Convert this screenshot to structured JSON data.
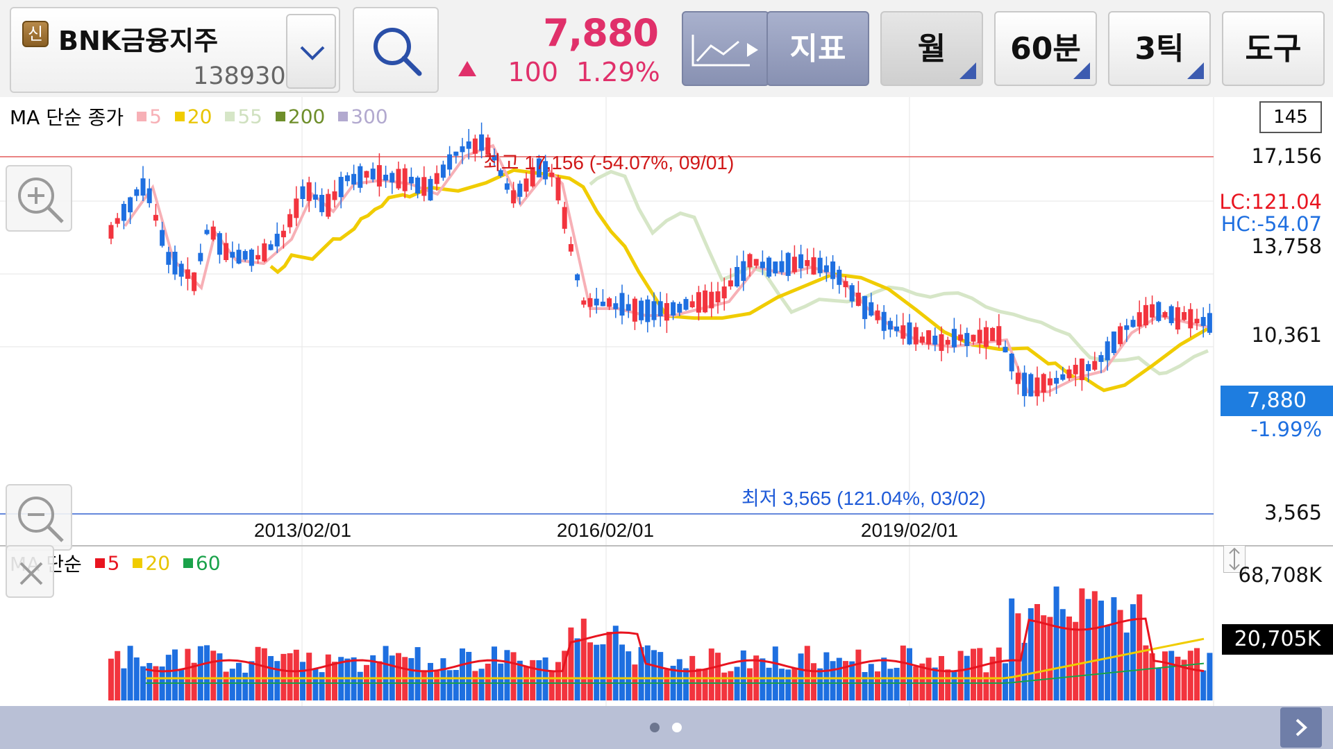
{
  "stock": {
    "badge": "신",
    "name": "BNK금융지주",
    "code": "138930",
    "price": "7,880",
    "change": "100",
    "change_pct": "1.29%"
  },
  "toolbar": {
    "indicator_label": "지표",
    "period_label": "월",
    "interval_label": "60분",
    "tick_label": "3틱",
    "tools_label": "도구"
  },
  "price_chart": {
    "ma_legend": {
      "title": "MA 단순 종가",
      "items": [
        {
          "label": "5",
          "color": "#f7b0b6"
        },
        {
          "label": "20",
          "color": "#f0cc00"
        },
        {
          "label": "55",
          "color": "#d6e6c7"
        },
        {
          "label": "200",
          "color": "#6e8e2a"
        },
        {
          "label": "300",
          "color": "#b2a9cf"
        }
      ]
    },
    "period_count": "145",
    "y_ticks": [
      "17,156",
      "13,758",
      "10,361",
      "3,565"
    ],
    "lc_label": "LC:121.04",
    "hc_label": "HC:-54.07",
    "current_price": "7,880",
    "current_pct": "-1.99%",
    "high_label": "최고 17,156 (-54.07%, 09/01)",
    "low_label": "최저 3,565 (121.04%, 03/02)",
    "x_labels": [
      "2013/02/01",
      "2016/02/01",
      "2019/02/01"
    ]
  },
  "volume_chart": {
    "ma_legend": {
      "title": "MA 단순",
      "items": [
        {
          "label": "5",
          "color": "#e8141f"
        },
        {
          "label": "20",
          "color": "#f0cc00"
        },
        {
          "label": "60",
          "color": "#1aa24a"
        }
      ]
    },
    "y_max": "68,708K",
    "current_volume": "20,705K"
  },
  "colors": {
    "up": "#f2343e",
    "down": "#1e6fe0",
    "accent": "#e0306a"
  }
}
